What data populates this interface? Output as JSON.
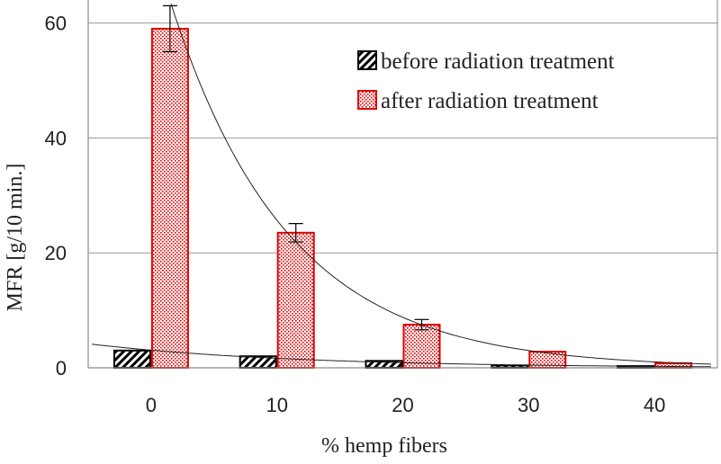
{
  "chart_data": {
    "type": "bar",
    "xlabel": "% hemp fibers",
    "ylabel": "MFR [g/10 min.]",
    "categories": [
      "0",
      "10",
      "20",
      "30",
      "40"
    ],
    "ylim": [
      0,
      64
    ],
    "yticks": [
      0,
      20,
      40,
      60
    ],
    "grid": true,
    "legend_position": "top-right",
    "series": [
      {
        "name": "before radiation treatment",
        "values": [
          3.0,
          2.0,
          1.2,
          0.4,
          0.3
        ],
        "errors": [
          0,
          0,
          0,
          0,
          0
        ],
        "pattern": "black-diagonal-hatch",
        "color": "#000000"
      },
      {
        "name": "after radiation treatment",
        "values": [
          59,
          23.5,
          7.5,
          2.8,
          0.8
        ],
        "errors": [
          4,
          1.6,
          0.9,
          0,
          0
        ],
        "pattern": "red-dot-fill",
        "color": "#e00000"
      }
    ],
    "trendlines": [
      {
        "series": "before radiation treatment",
        "type": "exponential"
      },
      {
        "series": "after radiation treatment",
        "type": "exponential"
      }
    ]
  }
}
